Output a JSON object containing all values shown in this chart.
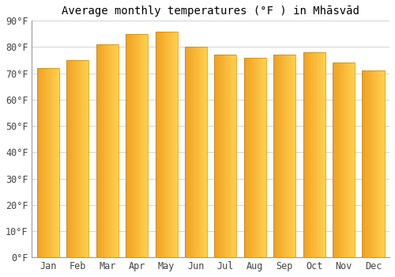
{
  "title": "Average monthly temperatures (°F ) in Mhāsvād",
  "months": [
    "Jan",
    "Feb",
    "Mar",
    "Apr",
    "May",
    "Jun",
    "Jul",
    "Aug",
    "Sep",
    "Oct",
    "Nov",
    "Dec"
  ],
  "values": [
    72,
    75,
    81,
    85,
    86,
    80,
    77,
    76,
    77,
    78,
    74,
    71
  ],
  "ylim": [
    0,
    90
  ],
  "yticks": [
    0,
    10,
    20,
    30,
    40,
    50,
    60,
    70,
    80,
    90
  ],
  "bar_color_left": "#F0A020",
  "bar_color_right": "#FFD050",
  "bar_edge_color": "#CC8800",
  "background_color": "#ffffff",
  "plot_bg_color": "#ffffff",
  "grid_color": "#cccccc",
  "title_fontsize": 10,
  "tick_fontsize": 8.5,
  "bar_width": 0.75
}
